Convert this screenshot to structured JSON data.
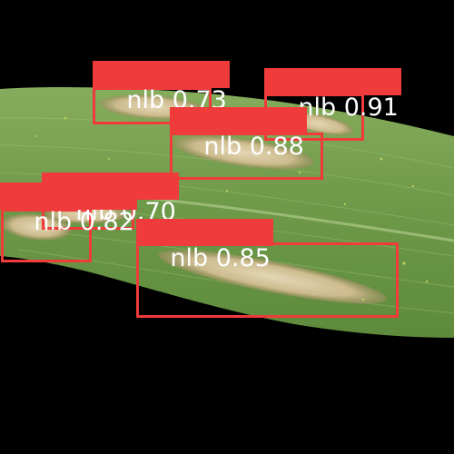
{
  "image": {
    "subject": "maize leaf with northern leaf blight lesions",
    "background_color": "#000000",
    "leaf_colors": {
      "base": "#6f9a4a",
      "light": "#9fc077",
      "dark": "#4d7431",
      "lesion": "#d9c9a3",
      "lesion_edge": "#8a7a52"
    },
    "box_color": "#ef3b3b",
    "label_text_color": "#ffffff"
  },
  "detections": [
    {
      "class": "nlb",
      "confidence": "0.73"
    },
    {
      "class": "nlb",
      "confidence": "0.91"
    },
    {
      "class": "nlb",
      "confidence": "0.88"
    },
    {
      "class": "nlb",
      "confidence": "0.70"
    },
    {
      "class": "nlb",
      "confidence": "0.82"
    },
    {
      "class": "nlb",
      "confidence": "0.85"
    }
  ]
}
